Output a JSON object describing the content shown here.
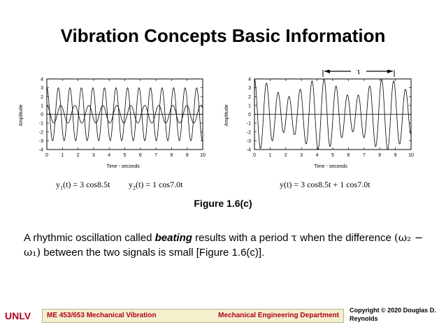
{
  "title": "Vibration Concepts Basic Information",
  "charts": {
    "left": {
      "xlabel": "Time - seconds",
      "ylabel": "Amplitude"
    },
    "right": {
      "xlabel": "Time - seconds",
      "ylabel": "Amplitude",
      "annotation": "τ"
    }
  },
  "equations": {
    "y1": {
      "lhs": "y",
      "sub": "1",
      "rhs": "(t) = 3 cos8.5t"
    },
    "y2": {
      "lhs": "y",
      "sub": "2",
      "rhs": "(t) = 1 cos7.0t"
    },
    "y": "y(t) = 3 cos8.5t + 1 cos7.0t"
  },
  "caption": "Figure 1.6(c)",
  "body": {
    "before": "A rhythmic oscillation called ",
    "keyword": "beating",
    "middle": " results with a period ",
    "tau": "τ",
    "after_tau": " when the difference ",
    "expr": "(ω₂ − ω₁)",
    "end": " between the two signals is small [Figure 1.6(c)]."
  },
  "footer": {
    "logo": "UNLV",
    "course": "ME 453/653 Mechanical Vibration",
    "department": "Mechanical Engineering Department",
    "copyright": "Copyright © 2020 Douglas D. Reynolds"
  },
  "chart_data": [
    {
      "type": "line",
      "xlabel": "Time - seconds",
      "ylabel": "Amplitude",
      "xlim": [
        0,
        10
      ],
      "ylim": [
        -4,
        4
      ],
      "xticks": [
        0,
        1,
        2,
        3,
        4,
        5,
        6,
        7,
        8,
        9,
        10
      ],
      "yticks": [
        -4,
        -3,
        -2,
        -1,
        0,
        1,
        2,
        3,
        4
      ],
      "grid": false,
      "series": [
        {
          "amplitude": 3,
          "omega": 8.5,
          "function": "3 cos 8.5t",
          "style": "solid"
        },
        {
          "amplitude": 1,
          "omega": 7.0,
          "function": "1 cos 7.0t",
          "style": "solid"
        }
      ]
    },
    {
      "type": "line",
      "xlabel": "Time - seconds",
      "ylabel": "Amplitude",
      "xlim": [
        0,
        10
      ],
      "ylim": [
        -4,
        4
      ],
      "xticks": [
        0,
        1,
        2,
        3,
        4,
        5,
        6,
        7,
        8,
        9,
        10
      ],
      "yticks": [
        -4,
        -3,
        -2,
        -1,
        0,
        1,
        2,
        3,
        4
      ],
      "grid": false,
      "annotation": "τ",
      "series": [
        {
          "components": [
            {
              "amplitude": 3,
              "omega": 8.5
            },
            {
              "amplitude": 1,
              "omega": 7.0
            }
          ],
          "function": "3 cos 8.5t + 1 cos 7.0t",
          "style": "solid"
        }
      ]
    }
  ]
}
